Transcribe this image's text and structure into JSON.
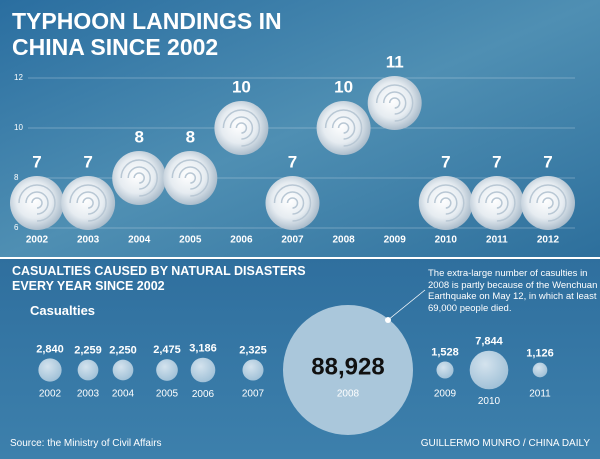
{
  "chart_data": [
    {
      "type": "pictogram",
      "title": "TYPHOON LANDINGS IN CHINA SINCE 2002",
      "categories": [
        "2002",
        "2003",
        "2004",
        "2005",
        "2006",
        "2007",
        "2008",
        "2009",
        "2010",
        "2011",
        "2012"
      ],
      "values": [
        7,
        7,
        8,
        8,
        10,
        7,
        10,
        11,
        7,
        7,
        7
      ],
      "ylim": [
        6,
        12
      ],
      "yticks": [
        6,
        8,
        10,
        12
      ],
      "grid": true,
      "color": "#f2f5f8"
    },
    {
      "type": "bubble",
      "title": "CASUALTIES CAUSED BY NATURAL DISASTERS EVERY YEAR SINCE 2002",
      "subtitle": "Casualties",
      "categories": [
        "2002",
        "2003",
        "2004",
        "2005",
        "2006",
        "2007",
        "2008",
        "2009",
        "2010",
        "2011"
      ],
      "values": [
        2840,
        2259,
        2250,
        2475,
        3186,
        2325,
        88928,
        1528,
        7844,
        1126
      ],
      "value_labels": [
        "2,840",
        "2,259",
        "2,250",
        "2,475",
        "3,186",
        "2,325",
        "88,928",
        "1,528",
        "7,844",
        "1,126"
      ],
      "annotation": "The extra-large number of casulties in 2008 is partly because of the Wenchuan Earthquake on May 12, in which at least 69,000 people died.",
      "color": "#b7cfe0"
    }
  ],
  "source": "Source: the Ministry of Civil Affairs",
  "credit": "GUILLERMO MUNRO / CHINA DAILY"
}
